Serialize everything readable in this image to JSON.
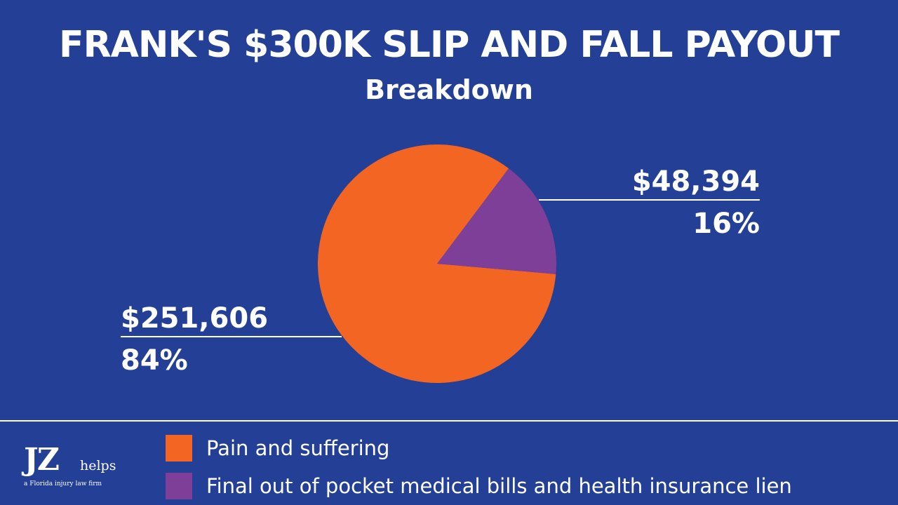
{
  "title": "FRANK'S $300K SLIP AND FALL PAYOUT",
  "subtitle": "Breakdown",
  "colors": {
    "background": "#233f96",
    "pain_and_suffering": "#f26522",
    "medical": "#7e3f98",
    "text": "#ffffff"
  },
  "chart_data": {
    "type": "pie",
    "title": "FRANK'S $300K SLIP AND FALL PAYOUT",
    "subtitle": "Breakdown",
    "slices": [
      {
        "name": "Pain and suffering",
        "value": 251606,
        "value_label": "$251,606",
        "percent": 84,
        "percent_label": "84%",
        "color": "#f26522"
      },
      {
        "name": "Final out of pocket medical bills and health insurance lien",
        "value": 48394,
        "value_label": "$48,394",
        "percent": 16,
        "percent_label": "16%",
        "color": "#7e3f98"
      }
    ],
    "legend_position": "bottom"
  },
  "legend": [
    {
      "label": "Pain and suffering",
      "color": "#f26522"
    },
    {
      "label": "Final out of pocket medical bills and health insurance lien",
      "color": "#7e3f98"
    }
  ],
  "logo": {
    "mark": "JZ",
    "word": "helps",
    "tagline": "a Florida injury law firm"
  }
}
